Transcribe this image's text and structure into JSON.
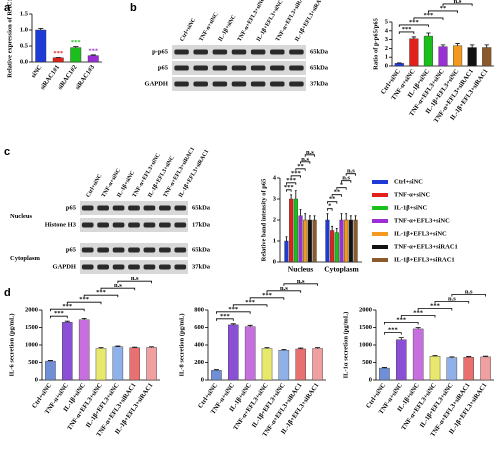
{
  "panel_labels": [
    "a",
    "b",
    "c",
    "d"
  ],
  "blot_b": {
    "lanes": [
      "Ctrl+siNC",
      "TNF-α+siNC",
      "IL-1β+siNC",
      "TNF-α+EFL3+siNC",
      "IL-1β+EFL3+siNC",
      "TNF-α+EFL3+siRAC1",
      "IL-1β+EFL3+siRAC1"
    ],
    "rows": [
      {
        "label": "p-p65",
        "size": "65kDa"
      },
      {
        "label": "p65",
        "size": "65kDa"
      },
      {
        "label": "GAPDH",
        "size": "37kDa"
      }
    ]
  },
  "blot_c": {
    "lanes": [
      "Ctrl+siNC",
      "TNF-α+siNC",
      "IL-1β+siNC",
      "TNF-α+EFL3+siNC",
      "IL-1β+EFL3+siNC",
      "TNF-α+EFL3+siRAC1",
      "IL-1β+EFL3+siRAC1"
    ],
    "groups": [
      {
        "label": "Nucleus",
        "rows": [
          {
            "label": "p65",
            "size": "65kDa"
          },
          {
            "label": "Histone H3",
            "size": "17kDa"
          }
        ]
      },
      {
        "label": "Cytoplasm",
        "rows": [
          {
            "label": "p65",
            "size": "65kDa"
          },
          {
            "label": "GAPDH",
            "size": "37kDa"
          }
        ]
      }
    ]
  },
  "chart_data": [
    {
      "type": "bar",
      "ylabel": "Relative expression of RAC1",
      "categories": [
        "siNC",
        "siRAC1#1",
        "siRAC1#2",
        "siRAC1#3"
      ],
      "values": [
        1.0,
        0.13,
        0.45,
        0.2
      ],
      "errors": [
        0.05,
        0.01,
        0.03,
        0.02
      ],
      "colors": [
        "#1f3bd6",
        "#e0211c",
        "#1bbf1b",
        "#9b2fd6"
      ],
      "ylim": [
        0,
        1.5
      ],
      "yticks": [
        {
          "value": 0,
          "label": "0.0"
        },
        {
          "value": 0.5,
          "label": "0.5"
        },
        {
          "value": 1,
          "label": "1.0"
        },
        {
          "value": 1.5,
          "label": "1.5"
        }
      ],
      "bar_labels": [
        null,
        "***",
        "***",
        "***"
      ]
    },
    {
      "type": "bar",
      "ylabel": "Ratio of p-p65/p65",
      "categories": [
        "Ctrl+siNC",
        "TNF-α+siNC",
        "IL-1β+siNC",
        "TNF-α+EFL3+siNC",
        "IL-1β+EFL3+siNC",
        "TNF-α+EFL3+siRAC1",
        "IL-1β+EFL3+siRAC1"
      ],
      "values": [
        0.3,
        3.1,
        3.4,
        2.2,
        2.3,
        2.1,
        2.1
      ],
      "errors": [
        0.05,
        0.2,
        0.35,
        0.2,
        0.25,
        0.3,
        0.3
      ],
      "colors": [
        "#1f3bd6",
        "#e0211c",
        "#1bbf1b",
        "#9b2fd6",
        "#f39a1e",
        "#111111",
        "#8b5a2b"
      ],
      "ylim": [
        0,
        5
      ],
      "yticks": [
        0,
        1,
        2,
        3,
        4,
        5
      ],
      "comparisons": [
        {
          "label": "***",
          "between": [
            0,
            1
          ]
        },
        {
          "label": "***",
          "between": [
            0,
            2
          ]
        },
        {
          "label": "***",
          "between": [
            1,
            3
          ]
        },
        {
          "label": "**",
          "between": [
            2,
            4
          ]
        },
        {
          "label": "n.s",
          "between": [
            3,
            5
          ]
        },
        {
          "label": "n.s",
          "between": [
            4,
            6
          ]
        }
      ]
    },
    {
      "type": "bar",
      "ylabel": "Relative band intensity of p65",
      "categories": [
        "Nucleus",
        "Cytoplasm"
      ],
      "series": [
        {
          "name": "Ctrl+siNC",
          "color": "#1f3bd6",
          "values": [
            1.0,
            2.0
          ],
          "errors": [
            0.2,
            0.3
          ]
        },
        {
          "name": "TNF-α+siNC",
          "color": "#e0211c",
          "values": [
            3.0,
            1.5
          ],
          "errors": [
            0.2,
            0.2
          ]
        },
        {
          "name": "IL-1β+siNC",
          "color": "#1bbf1b",
          "values": [
            3.0,
            1.4
          ],
          "errors": [
            0.4,
            0.2
          ]
        },
        {
          "name": "TNF-α+EFL3+siNC",
          "color": "#9b2fd6",
          "values": [
            2.2,
            2.0
          ],
          "errors": [
            0.3,
            0.3
          ]
        },
        {
          "name": "IL-1β+EFL3+siNC",
          "color": "#f39a1e",
          "values": [
            2.0,
            2.0
          ],
          "errors": [
            0.3,
            0.3
          ]
        },
        {
          "name": "TNF-α+EFL3+siRAC1",
          "color": "#111111",
          "values": [
            2.0,
            2.0
          ],
          "errors": [
            0.2,
            0.2
          ]
        },
        {
          "name": "IL-1β+EFL3+siRAC1",
          "color": "#8b5a2b",
          "values": [
            2.0,
            2.0
          ],
          "errors": [
            0.2,
            0.2
          ]
        }
      ],
      "ylim": [
        0,
        4
      ],
      "yticks": [
        0,
        1,
        2,
        3,
        4
      ],
      "comparisons": [
        [
          {
            "label": "***",
            "between": [
              0,
              1
            ]
          },
          {
            "label": "***",
            "between": [
              0,
              2
            ]
          },
          {
            "label": "***",
            "between": [
              1,
              3
            ]
          },
          {
            "label": "**",
            "between": [
              2,
              4
            ]
          },
          {
            "label": "n.s",
            "between": [
              3,
              5
            ]
          },
          {
            "label": "n.s",
            "between": [
              4,
              6
            ]
          }
        ],
        [
          {
            "label": "*",
            "between": [
              0,
              1
            ]
          },
          {
            "label": "**",
            "between": [
              0,
              2
            ]
          },
          {
            "label": "**",
            "between": [
              1,
              3
            ]
          },
          {
            "label": "*",
            "between": [
              2,
              4
            ]
          },
          {
            "label": "n.s",
            "between": [
              3,
              5
            ]
          },
          {
            "label": "n.s",
            "between": [
              4,
              6
            ]
          }
        ]
      ]
    },
    {
      "type": "bar",
      "ylabel": "IL-6 secretion (pg/mL)",
      "categories": [
        "Ctrl+siNC",
        "TNF-α+siNC",
        "IL-1β+siNC",
        "TNF-α+EFL3+siNC",
        "IL-1β+EFL3+siNC",
        "TNF-α+EFL3+siRAC1",
        "IL-1β+EFL3+siRAC1"
      ],
      "values": [
        540,
        1650,
        1720,
        900,
        950,
        920,
        930
      ],
      "errors": [
        15,
        30,
        40,
        25,
        20,
        20,
        20
      ],
      "colors": [
        "#6f8fd6",
        "#8b4fd6",
        "#c86fe0",
        "#e8e86f",
        "#8fb0e8",
        "#e87070",
        "#f0a0a0"
      ],
      "ylim": [
        0,
        2000
      ],
      "yticks": [
        0,
        500,
        1000,
        1500,
        2000
      ],
      "comparisons": [
        {
          "label": "***",
          "between": [
            0,
            1
          ]
        },
        {
          "label": "***",
          "between": [
            0,
            2
          ]
        },
        {
          "label": "***",
          "between": [
            1,
            3
          ]
        },
        {
          "label": "***",
          "between": [
            2,
            4
          ]
        },
        {
          "label": "n.s",
          "between": [
            3,
            5
          ]
        },
        {
          "label": "n.s",
          "between": [
            4,
            6
          ]
        }
      ]
    },
    {
      "type": "bar",
      "ylabel": "IL-8 secretion (pg/mL)",
      "categories": [
        "Ctrl+siNC",
        "TNF-α+siNC",
        "IL-1β+siNC",
        "TNF-α+EFL3+siNC",
        "IL-1β+EFL3+siNC",
        "TNF-α+EFL3+siRAC1",
        "IL-1β+EFL3+siRAC1"
      ],
      "values": [
        110,
        630,
        610,
        360,
        340,
        355,
        360
      ],
      "errors": [
        8,
        12,
        15,
        10,
        10,
        10,
        10
      ],
      "colors": [
        "#6f8fd6",
        "#8b4fd6",
        "#c86fe0",
        "#e8e86f",
        "#8fb0e8",
        "#e87070",
        "#f0a0a0"
      ],
      "ylim": [
        0,
        800
      ],
      "yticks": [
        0,
        200,
        400,
        600,
        800
      ],
      "comparisons": [
        {
          "label": "***",
          "between": [
            0,
            1
          ]
        },
        {
          "label": "***",
          "between": [
            0,
            2
          ]
        },
        {
          "label": "***",
          "between": [
            1,
            3
          ]
        },
        {
          "label": "***",
          "between": [
            2,
            4
          ]
        },
        {
          "label": "n.s",
          "between": [
            3,
            5
          ]
        },
        {
          "label": "n.s",
          "between": [
            4,
            6
          ]
        }
      ]
    },
    {
      "type": "bar",
      "ylabel": "IL-1α secretion (pg/mL)",
      "categories": [
        "Ctrl+siNC",
        "TNF-α+siNC",
        "IL-1β+siNC",
        "TNF-α+EFL3+siNC",
        "IL-1β+EFL3+siNC",
        "TNF-α+EFL3+siRAC1",
        "IL-1β+EFL3+siRAC1"
      ],
      "values": [
        340,
        1150,
        1460,
        680,
        640,
        650,
        660
      ],
      "errors": [
        15,
        60,
        40,
        20,
        20,
        20,
        20
      ],
      "colors": [
        "#6f8fd6",
        "#8b4fd6",
        "#c86fe0",
        "#e8e86f",
        "#8fb0e8",
        "#e87070",
        "#f0a0a0"
      ],
      "ylim": [
        0,
        2000
      ],
      "yticks": [
        0,
        500,
        1000,
        1500,
        2000
      ],
      "comparisons": [
        {
          "label": "***",
          "between": [
            0,
            1
          ]
        },
        {
          "label": "***",
          "between": [
            0,
            2
          ]
        },
        {
          "label": "***",
          "between": [
            1,
            3
          ]
        },
        {
          "label": "***",
          "between": [
            2,
            4
          ]
        },
        {
          "label": "n.s",
          "between": [
            3,
            5
          ]
        },
        {
          "label": "n.s",
          "between": [
            4,
            6
          ]
        }
      ]
    }
  ]
}
